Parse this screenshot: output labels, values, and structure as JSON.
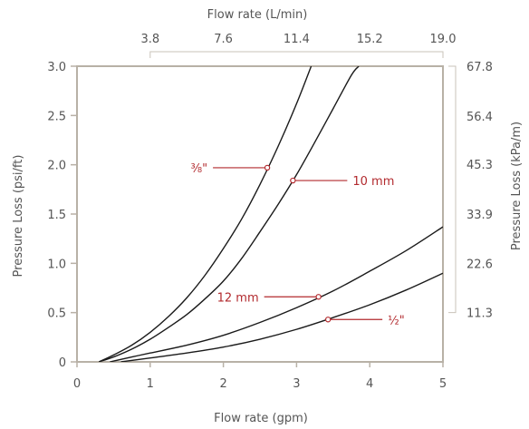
{
  "chart_data": {
    "type": "line",
    "title": "",
    "xlabel": "Flow rate (gpm)",
    "ylabel": "Pressure Loss (psi/ft)",
    "xlim": [
      0,
      5
    ],
    "ylim": [
      0,
      3.0
    ],
    "grid": false,
    "x_ticks": [
      "0",
      "1",
      "2",
      "3",
      "4",
      "5"
    ],
    "y_ticks": [
      "0",
      "0.5",
      "1.0",
      "1.5",
      "2.0",
      "2.5",
      "3.0"
    ],
    "secondary_x": {
      "label": "Flow rate (L/min)",
      "ticks": [
        {
          "value": 3.8,
          "label": "3.8"
        },
        {
          "value": 7.6,
          "label": "7.6"
        },
        {
          "value": 11.4,
          "label": "11.4"
        },
        {
          "value": 15.2,
          "label": "15.2"
        },
        {
          "value": 19.0,
          "label": "19.0"
        }
      ]
    },
    "secondary_y": {
      "label": "Pressure Loss (kPa/m)",
      "ticks": [
        {
          "value": 11.3,
          "label": "11.3"
        },
        {
          "value": 22.6,
          "label": "22.6"
        },
        {
          "value": 33.9,
          "label": "33.9"
        },
        {
          "value": 45.3,
          "label": "45.3"
        },
        {
          "value": 56.4,
          "label": "56.4"
        },
        {
          "value": 67.8,
          "label": "67.8"
        }
      ]
    },
    "series": [
      {
        "name": "⅜\"",
        "x": [
          0.3,
          0.5,
          0.75,
          1.0,
          1.25,
          1.5,
          1.75,
          2.0,
          2.25,
          2.5,
          2.75,
          3.0,
          3.2
        ],
        "values": [
          0.0,
          0.07,
          0.17,
          0.3,
          0.46,
          0.65,
          0.88,
          1.15,
          1.45,
          1.8,
          2.19,
          2.62,
          3.0
        ]
      },
      {
        "name": "10 mm",
        "x": [
          0.3,
          0.5,
          0.75,
          1.0,
          1.25,
          1.5,
          1.75,
          2.0,
          2.25,
          2.5,
          2.75,
          3.0,
          3.25,
          3.5,
          3.75,
          3.85
        ],
        "values": [
          0.0,
          0.05,
          0.13,
          0.23,
          0.35,
          0.48,
          0.64,
          0.82,
          1.05,
          1.32,
          1.6,
          1.9,
          2.23,
          2.57,
          2.91,
          3.0
        ]
      },
      {
        "name": "12 mm",
        "x": [
          0.45,
          0.75,
          1.0,
          1.5,
          2.0,
          2.5,
          3.0,
          3.5,
          4.0,
          4.5,
          5.0
        ],
        "values": [
          0.0,
          0.05,
          0.09,
          0.17,
          0.27,
          0.4,
          0.55,
          0.72,
          0.92,
          1.13,
          1.37
        ]
      },
      {
        "name": "½\"",
        "x": [
          0.6,
          1.0,
          1.5,
          2.0,
          2.5,
          3.0,
          3.5,
          4.0,
          4.5,
          5.0
        ],
        "values": [
          0.0,
          0.04,
          0.09,
          0.15,
          0.23,
          0.33,
          0.45,
          0.58,
          0.73,
          0.9
        ]
      }
    ],
    "annotations": [
      {
        "text": "⅜\"",
        "x": 2.6,
        "y": 1.97,
        "side": "left"
      },
      {
        "text": "10 mm",
        "x": 2.95,
        "y": 1.84,
        "side": "right"
      },
      {
        "text": "12 mm",
        "x": 3.3,
        "y": 0.66,
        "side": "left"
      },
      {
        "text": "½\"",
        "x": 3.43,
        "y": 0.43,
        "side": "right"
      }
    ]
  }
}
